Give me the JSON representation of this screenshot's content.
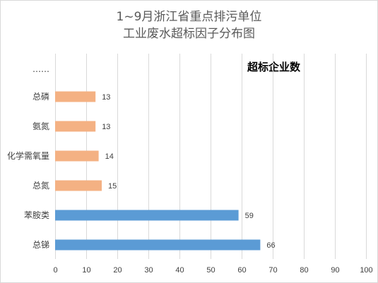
{
  "chart_data": {
    "type": "bar",
    "orientation": "horizontal",
    "title": [
      "1~9月浙江省重点排污单位",
      "工业废水超标因子分布图"
    ],
    "legend": "超标企业数",
    "legend_position": "top-right",
    "categories": [
      "……",
      "总磷",
      "氨氮",
      "化学需氧量",
      "总氮",
      "苯胺类",
      "总锑"
    ],
    "values": [
      null,
      13,
      13,
      14,
      15,
      59,
      66
    ],
    "bar_colors": [
      null,
      "#f4b183",
      "#f4b183",
      "#f4b183",
      "#f4b183",
      "#5b9bd5",
      "#5b9bd5"
    ],
    "xlim": [
      0,
      100
    ],
    "xticks": [
      "0",
      "10",
      "20",
      "30",
      "40",
      "50",
      "60",
      "70",
      "80",
      "90",
      "100"
    ],
    "grid": "vertical"
  }
}
